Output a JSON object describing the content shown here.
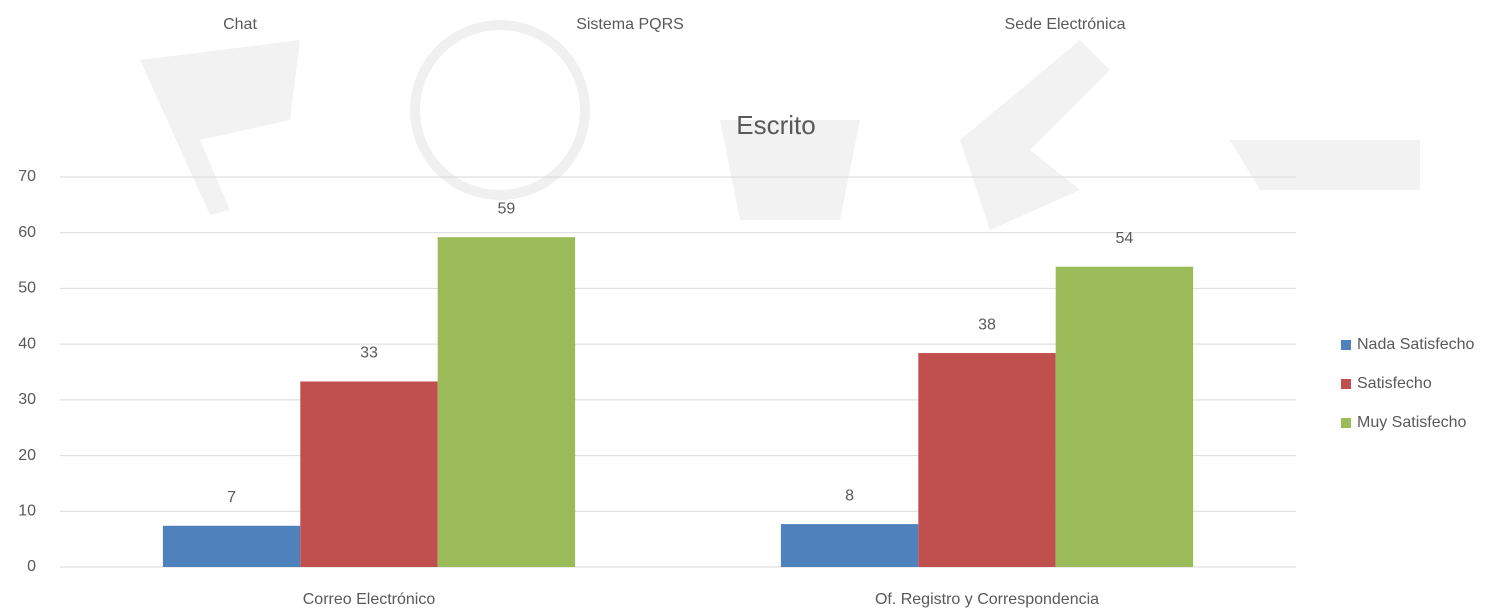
{
  "chart_data": {
    "type": "bar",
    "title": "Escrito",
    "annotations": [
      "Chat",
      "Sistema PQRS",
      "Sede Electrónica"
    ],
    "categories": [
      "Correo Electrónico",
      "Of. Registro y Correspondencia"
    ],
    "series": [
      {
        "name": "Nada Satisfecho",
        "color": "#4f81bd",
        "values": [
          7.4,
          7.7
        ],
        "value_labels": [
          "7",
          "8"
        ]
      },
      {
        "name": "Satisfecho",
        "color": "#c0504d",
        "values": [
          33.3,
          38.4
        ],
        "value_labels": [
          "33",
          "38"
        ]
      },
      {
        "name": "Muy Satisfecho",
        "color": "#9bbb59",
        "values": [
          59.2,
          53.9
        ],
        "value_labels": [
          "59",
          "54"
        ]
      }
    ],
    "ylim": [
      0,
      70
    ],
    "yticks": [
      0,
      10,
      20,
      30,
      40,
      50,
      60,
      70
    ],
    "grid": true,
    "legend": "right"
  }
}
